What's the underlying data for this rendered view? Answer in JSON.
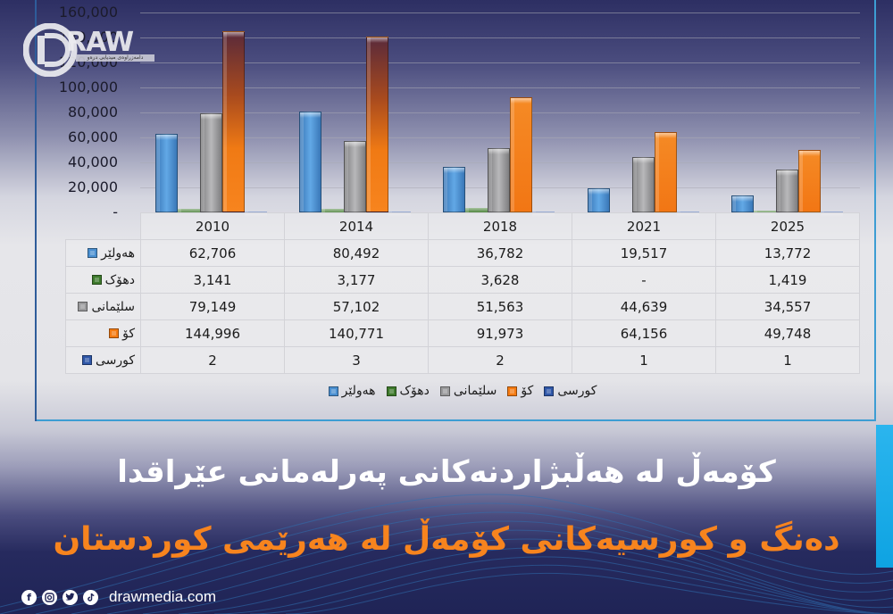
{
  "brand": {
    "logo_text": "RAW",
    "logo_letter": "D",
    "logo_tagline": "دامەزراوەی میدیایی درەو",
    "website": "drawmedia.com",
    "social_icons": [
      "facebook-icon",
      "instagram-icon",
      "twitter-icon",
      "tiktok-icon"
    ]
  },
  "titles": {
    "line1": "کۆمەڵ لە هەڵبژاردنەکانی پەرلەمانی عێراقدا",
    "line2": "دەنگ و کورسیەکانی کۆمەڵ لە هەرێمی کوردستان"
  },
  "colors": {
    "hawler": "#4a8fd1",
    "duhok": "#3e7a2c",
    "sulaymaniyah": "#9a9a9c",
    "total": "#f57b12",
    "seats": "#2f57a8",
    "title_orange": "#f7841e",
    "accent_cyan": "#1aacea",
    "frame_border": "#3d9dd3"
  },
  "chart_data": {
    "type": "bar",
    "title": "",
    "xlabel": "",
    "ylabel": "",
    "categories": [
      "2010",
      "2014",
      "2018",
      "2021",
      "2025"
    ],
    "series": [
      {
        "name": "هەولێر",
        "values": [
          62706,
          80492,
          36782,
          19517,
          13772
        ]
      },
      {
        "name": "دهۆک",
        "values": [
          3141,
          3177,
          3628,
          null,
          1419
        ]
      },
      {
        "name": "سلێمانی",
        "values": [
          79149,
          57102,
          51563,
          44639,
          34557
        ]
      },
      {
        "name": "کۆ",
        "values": [
          144996,
          140771,
          91973,
          64156,
          49748
        ]
      },
      {
        "name": "کورسی",
        "values": [
          2,
          3,
          2,
          1,
          1
        ]
      }
    ],
    "ylim": [
      0,
      160000
    ],
    "yticks": [
      "-",
      "20,000",
      "40,000",
      "60,000",
      "80,000",
      "100,000",
      "120,000",
      "140,000",
      "160,000"
    ],
    "grid": true,
    "legend_position": "bottom",
    "data_table": true
  },
  "table": {
    "headers": [
      "2010",
      "2014",
      "2018",
      "2021",
      "2025"
    ],
    "rows": [
      {
        "label": "هەولێر",
        "cells": [
          "62,706",
          "80,492",
          "36,782",
          "19,517",
          "13,772"
        ]
      },
      {
        "label": "دهۆک",
        "cells": [
          "3,141",
          "3,177",
          "3,628",
          "-",
          "1,419"
        ]
      },
      {
        "label": "سلێمانی",
        "cells": [
          "79,149",
          "57,102",
          "51,563",
          "44,639",
          "34,557"
        ]
      },
      {
        "label": "کۆ",
        "cells": [
          "144,996",
          "140,771",
          "91,973",
          "64,156",
          "49,748"
        ]
      },
      {
        "label": "کورسی",
        "cells": [
          "2",
          "3",
          "2",
          "1",
          "1"
        ]
      }
    ]
  },
  "legend": [
    {
      "label": "کورسی"
    },
    {
      "label": "کۆ"
    },
    {
      "label": "سلێمانی"
    },
    {
      "label": "دهۆک"
    },
    {
      "label": "هەولێر"
    }
  ]
}
